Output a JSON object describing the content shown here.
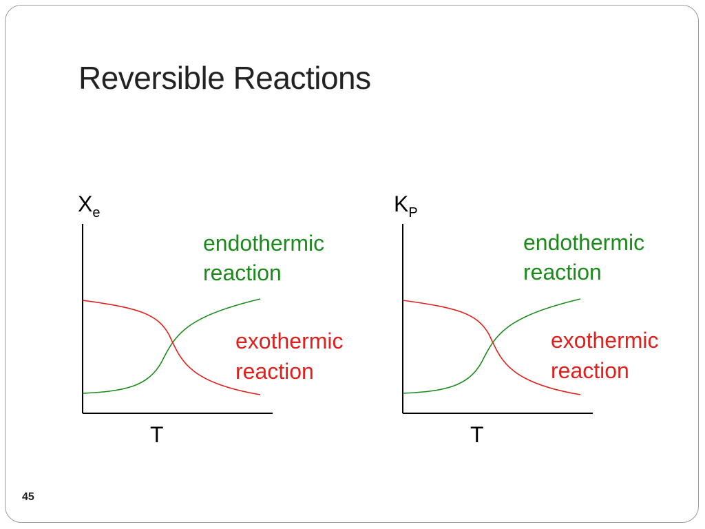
{
  "slide": {
    "title": "Reversible Reactions",
    "page_number": "45"
  },
  "colors": {
    "endothermic": "#1a8a1a",
    "exothermic": "#e0201c",
    "axis": "#000000"
  },
  "panels": [
    {
      "y_label_main": "X",
      "y_label_sub": "e",
      "x_label": "T",
      "endothermic_label": [
        "endothermic",
        "reaction"
      ],
      "exothermic_label": [
        "exothermic",
        "reaction"
      ]
    },
    {
      "y_label_main": "K",
      "y_label_sub": "P",
      "x_label": "T",
      "endothermic_label": [
        "endothermic",
        "reaction"
      ],
      "exothermic_label": [
        "exothermic",
        "reaction"
      ]
    }
  ]
}
